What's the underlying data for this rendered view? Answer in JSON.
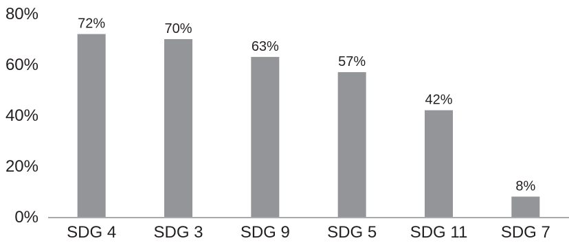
{
  "chart_data": {
    "type": "bar",
    "categories": [
      "SDG 4",
      "SDG 3",
      "SDG 9",
      "SDG 5",
      "SDG 11",
      "SDG 7"
    ],
    "values": [
      72,
      70,
      63,
      57,
      42,
      8
    ],
    "data_labels": [
      "72%",
      "70%",
      "63%",
      "57%",
      "42%",
      "8%"
    ],
    "y_ticks": [
      {
        "value": 0,
        "label": "0%"
      },
      {
        "value": 20,
        "label": "20%"
      },
      {
        "value": 40,
        "label": "40%"
      },
      {
        "value": 60,
        "label": "60%"
      },
      {
        "value": 80,
        "label": "80%"
      }
    ],
    "ylim": [
      0,
      80
    ],
    "grid": false,
    "bar_color": "#939598",
    "axis_color": "#a7a9ac",
    "text_color": "#231f20"
  }
}
